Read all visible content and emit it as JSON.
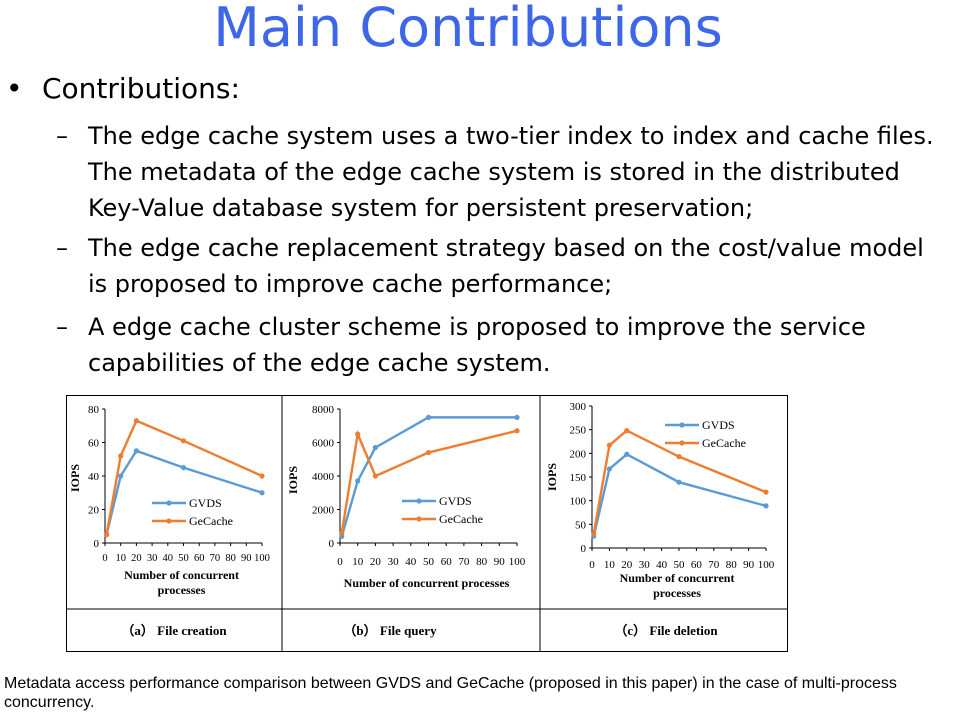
{
  "title": "Main Contributions",
  "bullet": {
    "marker": "•",
    "label": "Contributions:",
    "items": [
      {
        "dash": "–",
        "lines": [
          "The edge cache system uses a two-tier index to index and cache files.",
          "The metadata of the edge cache system is stored in the distributed",
          "Key-Value database system for persistent preservation;"
        ]
      },
      {
        "dash": "–",
        "lines": [
          "The edge cache replacement strategy based on the cost/value model",
          "is  proposed to improve cache performance;"
        ]
      },
      {
        "dash": "–",
        "lines": [
          "A  edge cache cluster scheme is proposed to improve the service",
          "capabilities of the edge cache system."
        ]
      }
    ]
  },
  "caption": "Metadata access performance comparison between GVDS and GeCache (proposed in this paper) in the case of multi-process concurrency.",
  "colors": {
    "title": "#3d67e8",
    "gvds": "#5b9bd5",
    "gecache": "#ed7d31"
  },
  "chart_data": [
    {
      "type": "line",
      "panel_label": "（a） File creation",
      "xlabel": "Number of concurrent processes",
      "ylabel": "IOPS",
      "xlim": [
        0,
        100
      ],
      "ylim": [
        0,
        80
      ],
      "x_ticks": [
        0,
        10,
        20,
        30,
        40,
        50,
        60,
        70,
        80,
        90,
        100
      ],
      "y_ticks": [
        0,
        20,
        40,
        60,
        80
      ],
      "legend_position": "bottom-center",
      "series": [
        {
          "name": "GVDS",
          "x": [
            1,
            10,
            20,
            50,
            100
          ],
          "values": [
            5,
            40,
            55,
            45,
            30
          ]
        },
        {
          "name": "GeCache",
          "x": [
            1,
            10,
            20,
            50,
            100
          ],
          "values": [
            5,
            52,
            73,
            61,
            40
          ]
        }
      ]
    },
    {
      "type": "line",
      "panel_label": "（b） File query",
      "xlabel": "Number of concurrent processes",
      "ylabel": "IOPS",
      "xlim": [
        0,
        100
      ],
      "ylim": [
        0,
        8000
      ],
      "x_ticks": [
        0,
        10,
        20,
        30,
        40,
        50,
        60,
        70,
        80,
        90,
        100
      ],
      "y_ticks": [
        0,
        2000,
        4000,
        6000,
        8000
      ],
      "legend_position": "bottom-right",
      "series": [
        {
          "name": "GVDS",
          "x": [
            1,
            10,
            20,
            50,
            100
          ],
          "values": [
            400,
            3700,
            5700,
            7500,
            7500
          ]
        },
        {
          "name": "GeCache",
          "x": [
            1,
            10,
            20,
            50,
            100
          ],
          "values": [
            600,
            6500,
            4000,
            5400,
            6700
          ]
        }
      ]
    },
    {
      "type": "line",
      "panel_label": "（c） File deletion",
      "xlabel": "Number of concurrent processes",
      "ylabel": "IOPS",
      "xlim": [
        0,
        100
      ],
      "ylim": [
        0,
        300
      ],
      "x_ticks": [
        0,
        10,
        20,
        30,
        40,
        50,
        60,
        70,
        80,
        90,
        100
      ],
      "y_ticks": [
        0,
        50,
        100,
        150,
        200,
        250,
        300
      ],
      "legend_position": "top-right",
      "series": [
        {
          "name": "GVDS",
          "x": [
            1,
            10,
            20,
            50,
            100
          ],
          "values": [
            25,
            167,
            198,
            139,
            89
          ]
        },
        {
          "name": "GeCache",
          "x": [
            1,
            10,
            20,
            50,
            100
          ],
          "values": [
            30,
            217,
            248,
            193,
            118
          ]
        }
      ]
    }
  ]
}
